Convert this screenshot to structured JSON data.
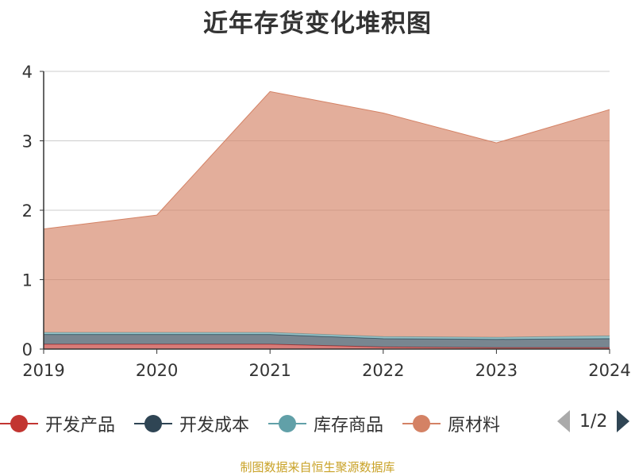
{
  "chart_data": {
    "type": "area",
    "stacked": true,
    "title": "近年存货变化堆积图",
    "categories": [
      "2019",
      "2020",
      "2021",
      "2022",
      "2023",
      "2024"
    ],
    "ylim": [
      0,
      4
    ],
    "yticks": [
      "0",
      "1",
      "2",
      "3",
      "4"
    ],
    "grid": true,
    "legend_position": "bottom",
    "series": [
      {
        "name": "开发产品",
        "color": "#c23531",
        "values": [
          0.07,
          0.07,
          0.07,
          0.03,
          0.02,
          0.02
        ]
      },
      {
        "name": "开发成本",
        "color": "#2f4554",
        "values": [
          0.14,
          0.14,
          0.14,
          0.12,
          0.12,
          0.13
        ]
      },
      {
        "name": "库存商品",
        "color": "#61a0a8",
        "values": [
          0.03,
          0.03,
          0.03,
          0.03,
          0.03,
          0.04
        ]
      },
      {
        "name": "原材料",
        "color": "#d48265",
        "values": [
          1.49,
          1.69,
          3.47,
          3.22,
          2.8,
          3.26
        ]
      }
    ]
  },
  "legend": {
    "page_indicator": "1/2"
  },
  "source_note": "制图数据来自恒生聚源数据库"
}
